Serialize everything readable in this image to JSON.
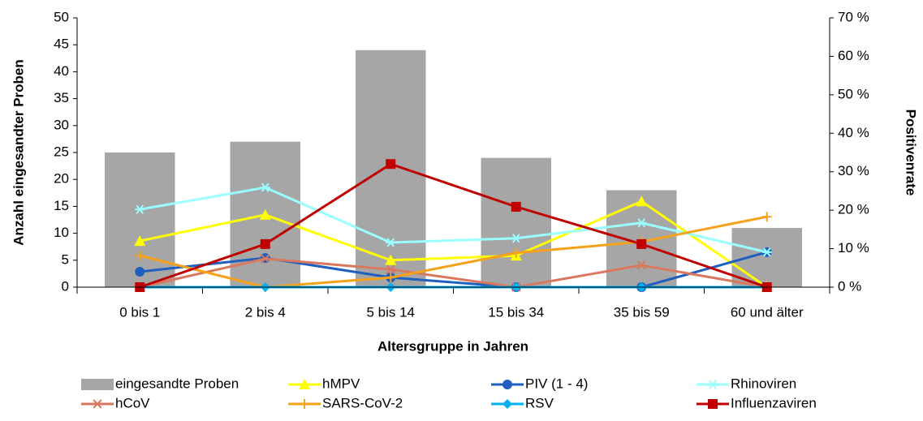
{
  "chart_data": {
    "type": "combo",
    "x_label": "Altersgruppe in Jahren",
    "y_label": "Anzahl eingesandter Proben",
    "y2_label": "Positivenrate",
    "categories": [
      "0 bis 1",
      "2 bis 4",
      "5 bis 14",
      "15 bis 34",
      "35 bis 59",
      "60 und älter"
    ],
    "ylim": [
      0,
      50
    ],
    "yticks": [
      0,
      5,
      10,
      15,
      20,
      25,
      30,
      35,
      40,
      45,
      50
    ],
    "y2lim": [
      0,
      70
    ],
    "y2ticks": [
      {
        "value": 0,
        "label": "0 %"
      },
      {
        "value": 10,
        "label": "10 %"
      },
      {
        "value": 20,
        "label": "20 %"
      },
      {
        "value": 30,
        "label": "30 %"
      },
      {
        "value": 40,
        "label": "40 %"
      },
      {
        "value": 50,
        "label": "50 %"
      },
      {
        "value": 60,
        "label": "60 %"
      },
      {
        "value": 70,
        "label": "70 %"
      }
    ],
    "series": [
      {
        "name": "eingesandte Proben",
        "type": "bar",
        "color": "#a6a6a6",
        "values": [
          25,
          27,
          44,
          24,
          18,
          11
        ]
      },
      {
        "name": "hMPV",
        "type": "line",
        "axis": "y2",
        "marker": "triangle",
        "color": "#ffff00",
        "values": [
          12.0,
          18.8,
          7.0,
          8.2,
          22.3,
          0
        ]
      },
      {
        "name": "PIV (1 - 4)",
        "type": "line",
        "axis": "y2",
        "marker": "circle",
        "color": "#1f5fbf",
        "values": [
          4.0,
          7.6,
          2.5,
          0,
          0,
          9.1
        ]
      },
      {
        "name": "Rhinoviren",
        "type": "line",
        "axis": "y2",
        "marker": "star",
        "color": "#99ffff",
        "values": [
          20.2,
          25.9,
          11.6,
          12.7,
          16.7,
          9.1
        ]
      },
      {
        "name": "hCoV",
        "type": "line",
        "axis": "y2",
        "marker": "x",
        "color": "#d9785f",
        "values": [
          0,
          7.4,
          4.6,
          0,
          5.7,
          0
        ]
      },
      {
        "name": "SARS-CoV-2",
        "type": "line",
        "axis": "y2",
        "marker": "plus",
        "color": "#f5a11a",
        "values": [
          8.2,
          0,
          2.5,
          8.9,
          11.8,
          18.3
        ]
      },
      {
        "name": "RSV",
        "type": "line",
        "axis": "y2",
        "marker": "diamond",
        "color": "#00b0f0",
        "values": [
          0,
          0,
          0,
          0,
          0,
          0
        ]
      },
      {
        "name": "Influenzaviren",
        "type": "line",
        "axis": "y2",
        "marker": "square",
        "color": "#c00000",
        "values": [
          0,
          11.2,
          32.0,
          20.9,
          11.2,
          0
        ]
      }
    ]
  }
}
